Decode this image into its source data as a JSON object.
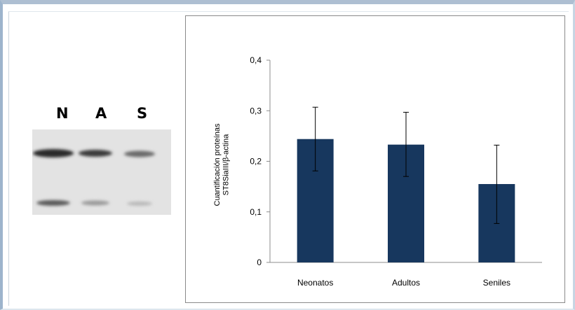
{
  "blot": {
    "lanes": [
      "N",
      "A",
      "S"
    ]
  },
  "chart_data": {
    "type": "bar",
    "categories": [
      "Neonatos",
      "Adultos",
      "Seniles"
    ],
    "values": [
      0.244,
      0.233,
      0.155
    ],
    "error_bars": [
      {
        "low": 0.181,
        "high": 0.307
      },
      {
        "low": 0.17,
        "high": 0.297
      },
      {
        "low": 0.077,
        "high": 0.232
      }
    ],
    "ylabel_lines": [
      "Cuantificación proteínas",
      "ST8SiaIII/β-actina"
    ],
    "xlabel": "",
    "ylim": [
      0,
      0.4
    ],
    "yticks": [
      {
        "value": 0,
        "label": "0"
      },
      {
        "value": 0.1,
        "label": "0,1"
      },
      {
        "value": 0.2,
        "label": "0,2"
      },
      {
        "value": 0.3,
        "label": "0,3"
      },
      {
        "value": 0.4,
        "label": "0,4"
      }
    ],
    "grid": false,
    "bar_color": "#17375e"
  }
}
